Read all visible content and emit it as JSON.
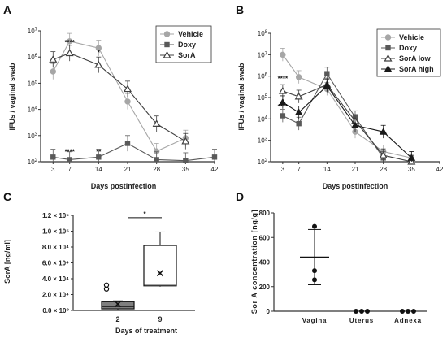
{
  "colors": {
    "vehicle": "#a6a6a6",
    "doxy": "#595959",
    "sorA": "#404040",
    "sorA_low": "#404040",
    "sorA_high": "#1a1a1a",
    "box_fill_2": "#7f7f7f"
  },
  "chart_data": [
    {
      "panel": "A",
      "type": "line",
      "ylabel": "IFUs / vaginal swab",
      "xlabel": "Days postinfection",
      "yscale": "log",
      "ylim": [
        100,
        10000000
      ],
      "xlim": [
        0,
        42
      ],
      "xticks": [
        3,
        7,
        14,
        21,
        28,
        35,
        42
      ],
      "yticks": [
        "10^2",
        "10^3",
        "10^4",
        "10^5",
        "10^6",
        "10^7"
      ],
      "legend_position": "top-right",
      "series": [
        {
          "name": "Vehicle",
          "marker": "circle",
          "x": [
            3,
            7,
            14,
            21,
            28,
            35
          ],
          "y": [
            280000,
            4000000,
            2200000,
            20000,
            250,
            800
          ]
        },
        {
          "name": "Doxy",
          "marker": "square",
          "x": [
            3,
            7,
            14,
            21,
            28,
            35,
            42
          ],
          "y": [
            150,
            120,
            150,
            500,
            120,
            110,
            150
          ]
        },
        {
          "name": "SorA",
          "marker": "triangle-open",
          "x": [
            3,
            7,
            14,
            21,
            28,
            35
          ],
          "y": [
            800000,
            1400000,
            500000,
            60000,
            2800,
            600
          ]
        }
      ],
      "annotations": [
        {
          "text": "****",
          "x": 7,
          "y": 3000000
        },
        {
          "text": "****",
          "x": 7,
          "y": 200
        },
        {
          "text": "**",
          "x": 14,
          "y": 200
        },
        {
          "text": "*",
          "x": 14,
          "y": 1200000
        }
      ]
    },
    {
      "panel": "B",
      "type": "line",
      "ylabel": "IFUs / vaginal swab",
      "xlabel": "Days postinfection",
      "yscale": "log",
      "ylim": [
        100,
        100000000
      ],
      "xlim": [
        0,
        42
      ],
      "xticks": [
        3,
        7,
        14,
        21,
        28,
        35,
        42
      ],
      "yticks": [
        "10^2",
        "10^3",
        "10^4",
        "10^5",
        "10^6",
        "10^7",
        "10^8"
      ],
      "legend_position": "top-right",
      "series": [
        {
          "name": "Vehicle",
          "marker": "circle",
          "x": [
            3,
            7,
            14,
            21,
            28,
            35
          ],
          "y": [
            10000000,
            900000,
            250000,
            2500,
            300,
            150
          ]
        },
        {
          "name": "Doxy",
          "marker": "square",
          "x": [
            3,
            7,
            14,
            21,
            28
          ],
          "y": [
            14000,
            6000,
            1300000,
            12000,
            150
          ]
        },
        {
          "name": "SorA low",
          "marker": "triangle-open",
          "x": [
            3,
            7,
            14,
            21,
            28,
            35
          ],
          "y": [
            200000,
            110000,
            400000,
            8000,
            200,
            100
          ]
        },
        {
          "name": "SorA high",
          "marker": "triangle-filled",
          "x": [
            3,
            7,
            14,
            21,
            28,
            35
          ],
          "y": [
            60000,
            20000,
            350000,
            5000,
            2500,
            150
          ]
        }
      ],
      "annotations": [
        {
          "text": "****",
          "x": 3,
          "y": 600000
        },
        {
          "text": "****",
          "x": 3,
          "y": 30000
        }
      ]
    },
    {
      "panel": "C",
      "type": "box",
      "ylabel": "SorA [ng/ml]",
      "xlabel": "Days of treatment",
      "ylim": [
        0,
        120000
      ],
      "yticks": [
        {
          "value": 0,
          "label": "0.0 × 10⁰"
        },
        {
          "value": 20000,
          "label": "2.0 × 10⁴"
        },
        {
          "value": 40000,
          "label": "4.0 × 10⁴"
        },
        {
          "value": 60000,
          "label": "6.0 × 10⁴"
        },
        {
          "value": 80000,
          "label": "8.0 × 10⁴"
        },
        {
          "value": 100000,
          "label": "1.0 × 10⁵"
        },
        {
          "value": 120000,
          "label": "1.2 × 10⁵"
        }
      ],
      "categories": [
        "2",
        "9"
      ],
      "boxes": [
        {
          "category": "2",
          "min": 0,
          "q1": 2000,
          "median": 5000,
          "q3": 11000,
          "max": 12000,
          "mean": 8000,
          "outliers": [
            27000,
            32000
          ]
        },
        {
          "category": "9",
          "min": 30000,
          "q1": 31000,
          "median": 33000,
          "q3": 82000,
          "max": 99000,
          "mean": 47000,
          "outliers": []
        }
      ],
      "significance": {
        "text": "*",
        "between": [
          "2",
          "9"
        ],
        "y": 117000
      }
    },
    {
      "panel": "D",
      "type": "scatter",
      "ylabel": "Sor A concentration [ng/g]",
      "ylim": [
        0,
        800
      ],
      "yticks": [
        0,
        200,
        400,
        600,
        800
      ],
      "categories": [
        "Vagina",
        "Uterus",
        "Adnexa"
      ],
      "points": [
        {
          "category": "Vagina",
          "values": [
            690,
            330,
            255
          ]
        },
        {
          "category": "Uterus",
          "values": [
            0,
            0,
            0
          ]
        },
        {
          "category": "Adnexa",
          "values": [
            0,
            0,
            0
          ]
        }
      ],
      "mean_sd": [
        {
          "category": "Vagina",
          "mean": 440,
          "sd_low": 215,
          "sd_high": 665
        }
      ]
    }
  ]
}
